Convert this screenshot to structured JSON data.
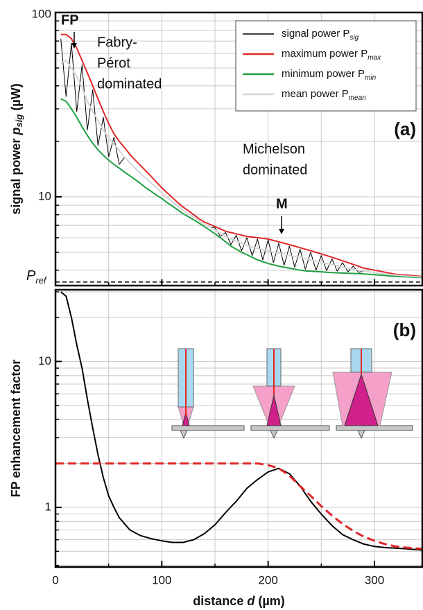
{
  "chart_data": [
    {
      "type": "line",
      "panel_label": "(a)",
      "ylabel": {
        "text": "signal power",
        "symbol": "p",
        "subscript": "sig",
        "unit": "(µW)"
      },
      "log_y": true,
      "grid": true,
      "xlim": [
        0,
        345
      ],
      "xticks": [
        0,
        100,
        200,
        300
      ],
      "xminor": [
        50,
        150,
        250
      ],
      "ylim": [
        3.3,
        100
      ],
      "yticks": [
        10,
        100
      ],
      "yminor": [
        4,
        5,
        6,
        7,
        8,
        9,
        20,
        30,
        40,
        50,
        60,
        70,
        80,
        90
      ],
      "legend": "top-right",
      "x": [
        5,
        10,
        15,
        20,
        25,
        30,
        35,
        40,
        45,
        50,
        55,
        60,
        65,
        70,
        75,
        80,
        85,
        90,
        95,
        100,
        105,
        110,
        115,
        120,
        125,
        130,
        135,
        140,
        145,
        150,
        155,
        160,
        165,
        170,
        175,
        180,
        185,
        190,
        195,
        200,
        205,
        210,
        215,
        220,
        225,
        230,
        235,
        240,
        245,
        250,
        255,
        260,
        265,
        270,
        275,
        280,
        285,
        290,
        295,
        300,
        305,
        310,
        315,
        320,
        325,
        330,
        335,
        340,
        345
      ],
      "series": [
        {
          "name": "signal power P",
          "subscript": "sig",
          "color": "#000000",
          "width": 1,
          "values": [
            72,
            35,
            68,
            29,
            52,
            23,
            38,
            19,
            27,
            16.5,
            21,
            15,
            16.4,
            15.3,
            14.3,
            13.4,
            12.6,
            11.9,
            11.2,
            10.5,
            9.9,
            9.4,
            8.9,
            8.45,
            8.1,
            7.75,
            7.4,
            7.1,
            6.85,
            6.8,
            6.1,
            6.4,
            5.5,
            6.2,
            5.1,
            6.0,
            4.8,
            5.9,
            4.55,
            5.85,
            4.4,
            5.6,
            4.25,
            5.4,
            4.15,
            5.2,
            4.05,
            5.0,
            4.0,
            4.8,
            3.98,
            4.6,
            3.95,
            4.4,
            3.92,
            4.2,
            3.9,
            3.95,
            3.92,
            3.88,
            3.85,
            3.82,
            3.79,
            3.76,
            3.74,
            3.72,
            3.7,
            3.69,
            3.67
          ]
        },
        {
          "name": "maximum power P",
          "subscript": "max",
          "color": "#e02828",
          "width": 2,
          "values": [
            76,
            76,
            72,
            64,
            55,
            47,
            40,
            34,
            29,
            25,
            22,
            20,
            18.5,
            17,
            15.8,
            14.8,
            13.8,
            12.9,
            12,
            11.2,
            10.5,
            9.9,
            9.3,
            8.8,
            8.4,
            8,
            7.6,
            7.3,
            7.1,
            6.9,
            6.7,
            6.5,
            6.4,
            6.3,
            6.2,
            6.1,
            6.05,
            6.0,
            5.95,
            5.9,
            5.8,
            5.7,
            5.6,
            5.5,
            5.4,
            5.3,
            5.2,
            5.1,
            5.0,
            4.9,
            4.8,
            4.7,
            4.6,
            4.5,
            4.4,
            4.3,
            4.2,
            4.1,
            4.05,
            4.0,
            3.95,
            3.9,
            3.85,
            3.8,
            3.78,
            3.76,
            3.74,
            3.72,
            3.7
          ]
        },
        {
          "name": "minimum power P",
          "subscript": "min",
          "color": "#1fa040",
          "width": 2,
          "values": [
            34,
            33,
            30,
            27,
            24,
            21.5,
            19.5,
            18,
            16.8,
            15.8,
            15,
            14.3,
            13.6,
            13,
            12.4,
            11.8,
            11.2,
            10.7,
            10.2,
            9.8,
            9.3,
            8.9,
            8.5,
            8.1,
            7.8,
            7.5,
            7.2,
            6.9,
            6.6,
            6.3,
            6.0,
            5.7,
            5.4,
            5.2,
            5.0,
            4.85,
            4.7,
            4.55,
            4.45,
            4.35,
            4.28,
            4.2,
            4.15,
            4.1,
            4.05,
            4.0,
            3.97,
            3.95,
            3.93,
            3.92,
            3.9,
            3.88,
            3.87,
            3.86,
            3.85,
            3.84,
            3.83,
            3.82,
            3.8,
            3.78,
            3.76,
            3.74,
            3.72,
            3.7,
            3.69,
            3.68,
            3.67,
            3.66,
            3.65
          ]
        },
        {
          "name": "mean power P",
          "subscript": "mean",
          "color": "#d4d4d4",
          "width": 2,
          "values": [
            53,
            55,
            50,
            45,
            39,
            33,
            29,
            26,
            23,
            21,
            19.3,
            17.8,
            16.4,
            15.3,
            14.3,
            13.4,
            12.6,
            11.9,
            11.2,
            10.5,
            9.9,
            9.4,
            8.9,
            8.45,
            8.1,
            7.75,
            7.4,
            7.1,
            6.85,
            6.6,
            6.35,
            6.1,
            5.9,
            5.75,
            5.6,
            5.45,
            5.35,
            5.25,
            5.15,
            5.1,
            5.0,
            4.95,
            4.9,
            4.8,
            4.75,
            4.7,
            4.62,
            4.55,
            4.48,
            4.4,
            4.35,
            4.3,
            4.22,
            4.15,
            4.1,
            4.05,
            4.0,
            3.95,
            3.92,
            3.88,
            3.85,
            3.82,
            3.79,
            3.76,
            3.74,
            3.72,
            3.7,
            3.69,
            3.67
          ]
        }
      ],
      "reference_line": {
        "symbol": "P",
        "subscript": "ref",
        "value": 3.45
      },
      "annotations": [
        {
          "text": [
            "FP"
          ]
        },
        {
          "text": [
            "Fabry-",
            "Pérot",
            "dominated"
          ]
        },
        {
          "text": [
            "Michelson",
            "dominated"
          ]
        },
        {
          "text": [
            "M"
          ]
        }
      ]
    },
    {
      "type": "line",
      "panel_label": "(b)",
      "ylabel": {
        "text": "FP enhancement factor"
      },
      "xlabel": {
        "text": "distance",
        "symbol": "d",
        "unit": "(µm)"
      },
      "log_y": true,
      "grid": true,
      "xlim": [
        0,
        345
      ],
      "xticks": [
        0,
        100,
        200,
        300
      ],
      "xminor": [
        50,
        150,
        250
      ],
      "ylim": [
        0.39,
        31
      ],
      "yticks": [
        1,
        10
      ],
      "yminor": [
        0.4,
        0.5,
        0.6,
        0.7,
        0.8,
        0.9,
        2,
        3,
        4,
        5,
        6,
        7,
        8,
        9,
        20,
        30
      ],
      "series": [
        {
          "color": "#000000",
          "width": 2,
          "x": [
            5,
            10,
            15,
            20,
            25,
            30,
            35,
            40,
            45,
            50,
            55,
            60,
            70,
            80,
            90,
            100,
            110,
            120,
            130,
            140,
            150,
            160,
            170,
            180,
            190,
            200,
            210,
            220,
            230,
            240,
            250,
            260,
            270,
            280,
            290,
            300,
            310,
            320,
            330,
            345
          ],
          "values": [
            30,
            28,
            20,
            13,
            9,
            5.5,
            3.5,
            2.3,
            1.6,
            1.2,
            1.0,
            0.85,
            0.7,
            0.64,
            0.61,
            0.59,
            0.575,
            0.575,
            0.6,
            0.66,
            0.76,
            0.92,
            1.1,
            1.35,
            1.55,
            1.75,
            1.85,
            1.7,
            1.4,
            1.1,
            0.9,
            0.75,
            0.65,
            0.6,
            0.56,
            0.54,
            0.53,
            0.525,
            0.52,
            0.51
          ]
        },
        {
          "color": "#e02828",
          "width": 3,
          "dash": true,
          "x": [
            0,
            190,
            200,
            210,
            220,
            230,
            240,
            250,
            260,
            270,
            280,
            290,
            300,
            310,
            320,
            330,
            345
          ],
          "values": [
            2.0,
            2.0,
            1.95,
            1.85,
            1.65,
            1.4,
            1.2,
            1.02,
            0.88,
            0.77,
            0.69,
            0.63,
            0.59,
            0.56,
            0.54,
            0.53,
            0.52
          ]
        }
      ]
    }
  ]
}
